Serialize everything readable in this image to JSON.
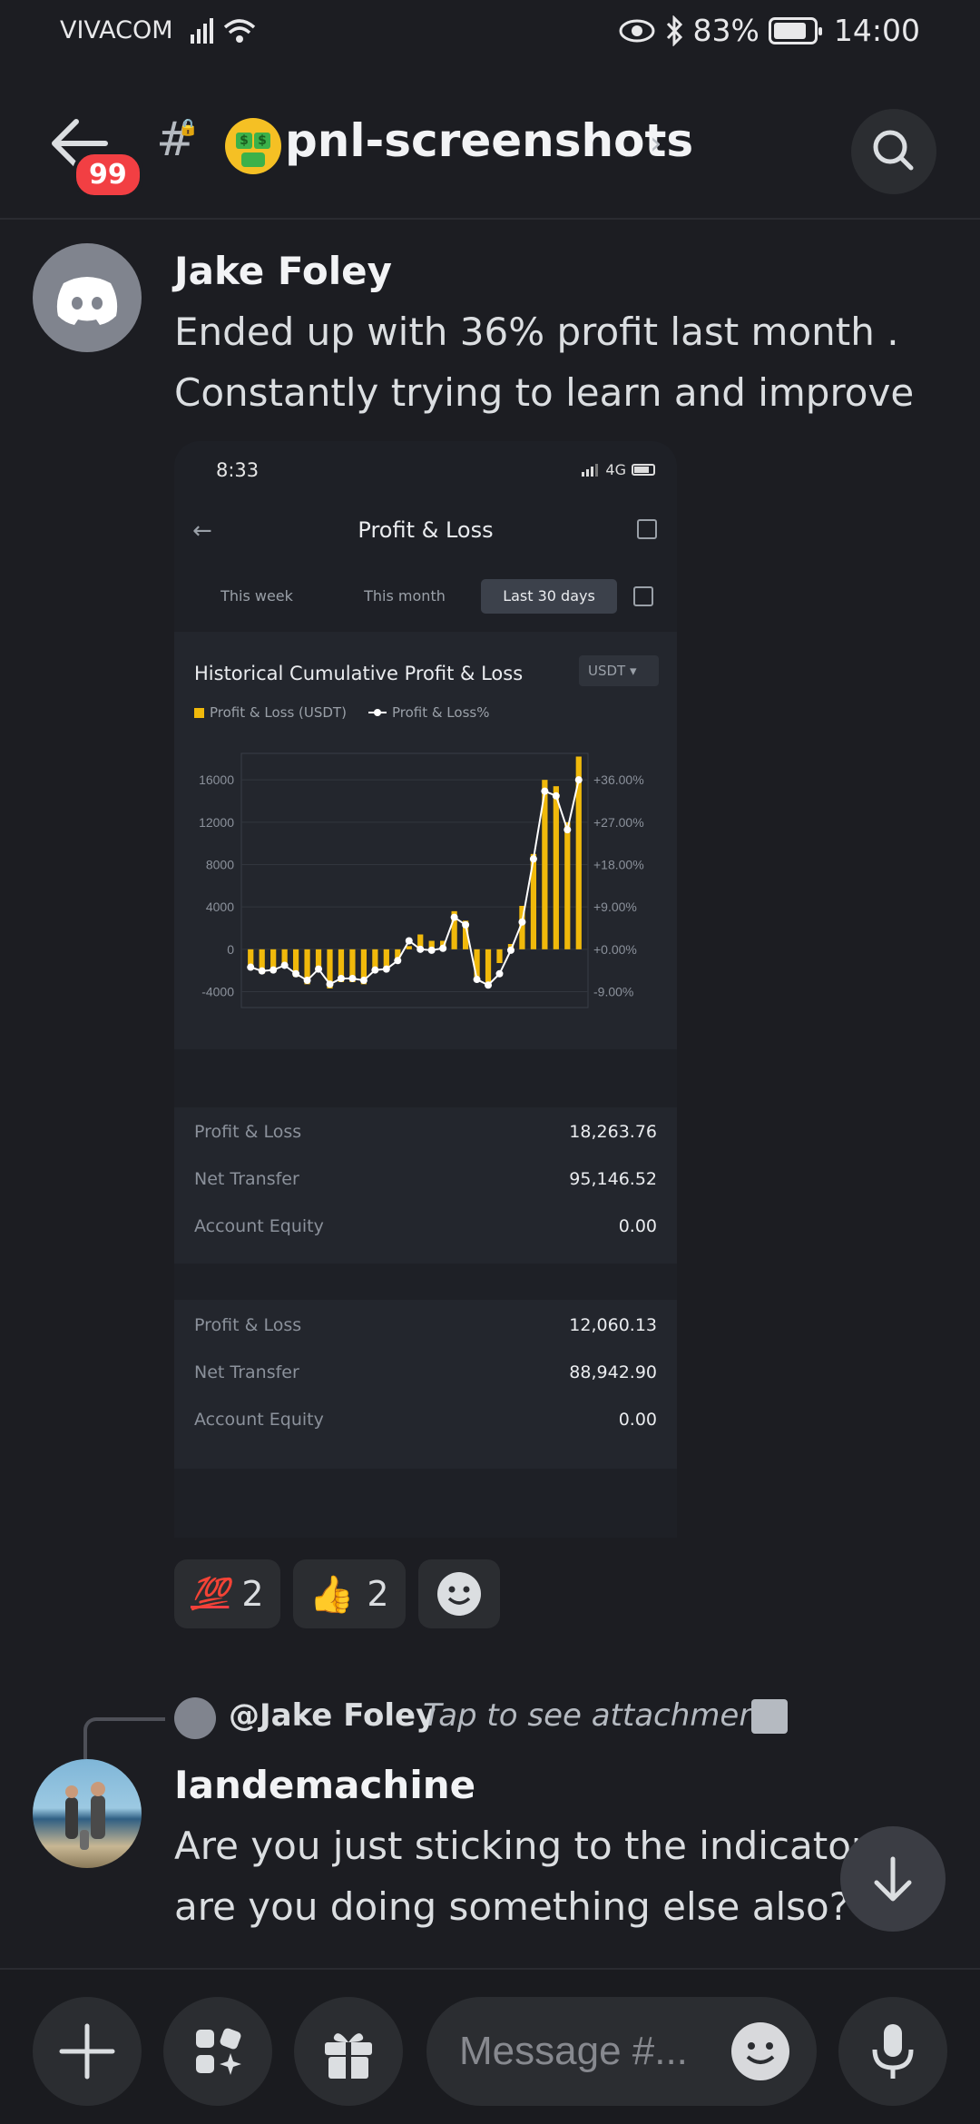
{
  "status_bar": {
    "carrier": "VIVACOM",
    "battery": "83%",
    "time": "14:00"
  },
  "header": {
    "back_badge": "99",
    "channel_name": "pnl-screenshots",
    "icons": [
      "back-arrow-icon",
      "hash-lock-icon",
      "money-mouth-emoji",
      "chevron-right-icon",
      "search-icon"
    ]
  },
  "messages": [
    {
      "author": "Jake Foley",
      "text_line1": "Ended up with 36% profit last month .",
      "text_line2": "Constantly trying to learn and improve"
    },
    {
      "author": "Iandemachine",
      "text_line1": "Are you just sticking to the indicator",
      "text_line2": "are you doing something else also?"
    }
  ],
  "attachment": {
    "phone_time": "8:33",
    "network": "4G",
    "title": "Profit & Loss",
    "tabs": [
      "This week",
      "This month",
      "Last 30 days"
    ],
    "active_tab": "Last 30 days",
    "chart_title": "Historical Cumulative Profit & Loss",
    "currency": "USDT",
    "legend": [
      "Profit & Loss (USDT)",
      "Profit & Loss%"
    ],
    "summary1": [
      {
        "label": "Profit & Loss",
        "value": "18,263.76"
      },
      {
        "label": "Net Transfer",
        "value": "95,146.52"
      },
      {
        "label": "Account Equity",
        "value": "0.00"
      }
    ],
    "summary2": [
      {
        "label": "Profit & Loss",
        "value": "12,060.13"
      },
      {
        "label": "Net Transfer",
        "value": "88,942.90"
      },
      {
        "label": "Account Equity",
        "value": "0.00"
      }
    ]
  },
  "chart_data": {
    "type": "bar",
    "title": "Historical Cumulative Profit & Loss",
    "y_left_ticks": [
      "16000",
      "12000",
      "8000",
      "4000",
      "0",
      "-4000"
    ],
    "y_right_ticks": [
      "+36.00%",
      "+27.00%",
      "+18.00%",
      "+9.00%",
      "+0.00%",
      "-9.00%"
    ],
    "ylim": [
      -5500,
      18500
    ],
    "series": [
      {
        "name": "Profit & Loss (USDT)",
        "values": [
          -1900,
          -2300,
          -2200,
          -1700,
          -2600,
          -3300,
          -2100,
          -3700,
          -3100,
          -3100,
          -3300,
          -2200,
          -2100,
          -1200,
          300,
          1400,
          800,
          800,
          3600,
          2700,
          -2600,
          -3100,
          -1300,
          500,
          4100,
          9000,
          16000,
          15400,
          12000,
          18200
        ]
      },
      {
        "name": "Profit & Loss%",
        "values": [
          -3.8,
          -4.6,
          -4.4,
          -3.4,
          -5.2,
          -6.6,
          -4.2,
          -7.4,
          -6.2,
          -6.2,
          -6.6,
          -4.4,
          -4.2,
          -2.4,
          1.8,
          0.0,
          -0.2,
          0.2,
          6.8,
          5.2,
          -6.4,
          -7.6,
          -5.2,
          -0.2,
          5.8,
          19.2,
          33.6,
          32.6,
          25.4,
          36.0
        ]
      }
    ]
  },
  "reactions": [
    {
      "emoji": "💯",
      "count": "2"
    },
    {
      "emoji": "👍",
      "count": "2"
    },
    {
      "emoji": "add-reaction-icon",
      "count": ""
    }
  ],
  "reply": {
    "mention": "@Jake Foley",
    "text": "Tap to see attachment"
  },
  "composer": {
    "placeholder": "Message #..."
  }
}
